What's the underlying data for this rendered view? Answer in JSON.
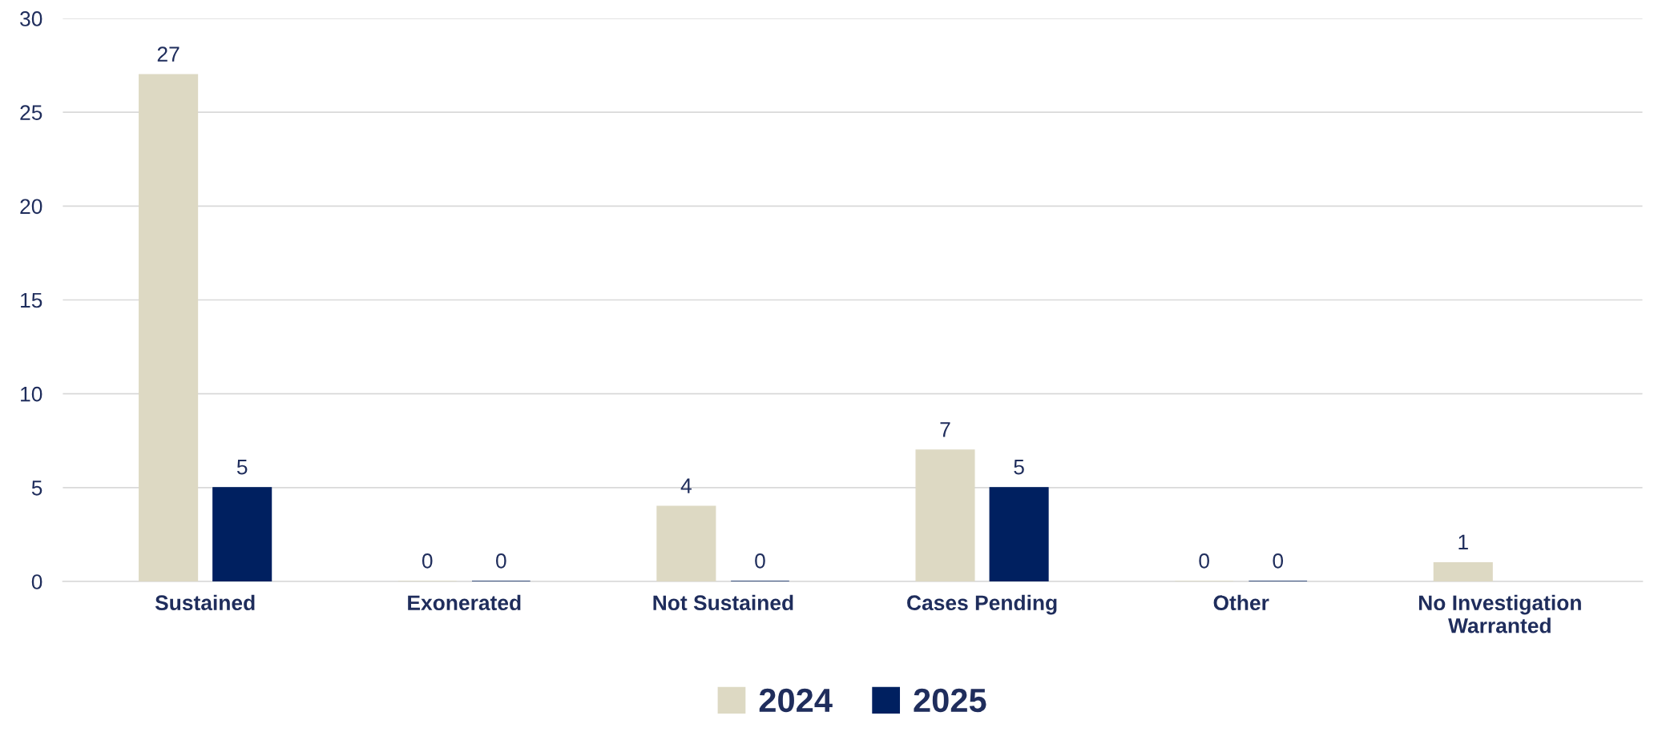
{
  "chart_data": {
    "type": "bar",
    "categories": [
      "Sustained",
      "Exonerated",
      "Not Sustained",
      "Cases Pending",
      "Other",
      "No Investigation Warranted"
    ],
    "series": [
      {
        "name": "2024",
        "color": "#ddd9c3",
        "values": [
          27,
          0,
          4,
          7,
          0,
          1
        ]
      },
      {
        "name": "2025",
        "color": "#002060",
        "values": [
          5,
          0,
          0,
          5,
          0,
          null
        ]
      }
    ],
    "ylim": [
      0,
      30
    ],
    "yticks": [
      0,
      5,
      10,
      15,
      20,
      25,
      30
    ],
    "grid": "y",
    "legend": "bottom",
    "data_labels": true
  }
}
